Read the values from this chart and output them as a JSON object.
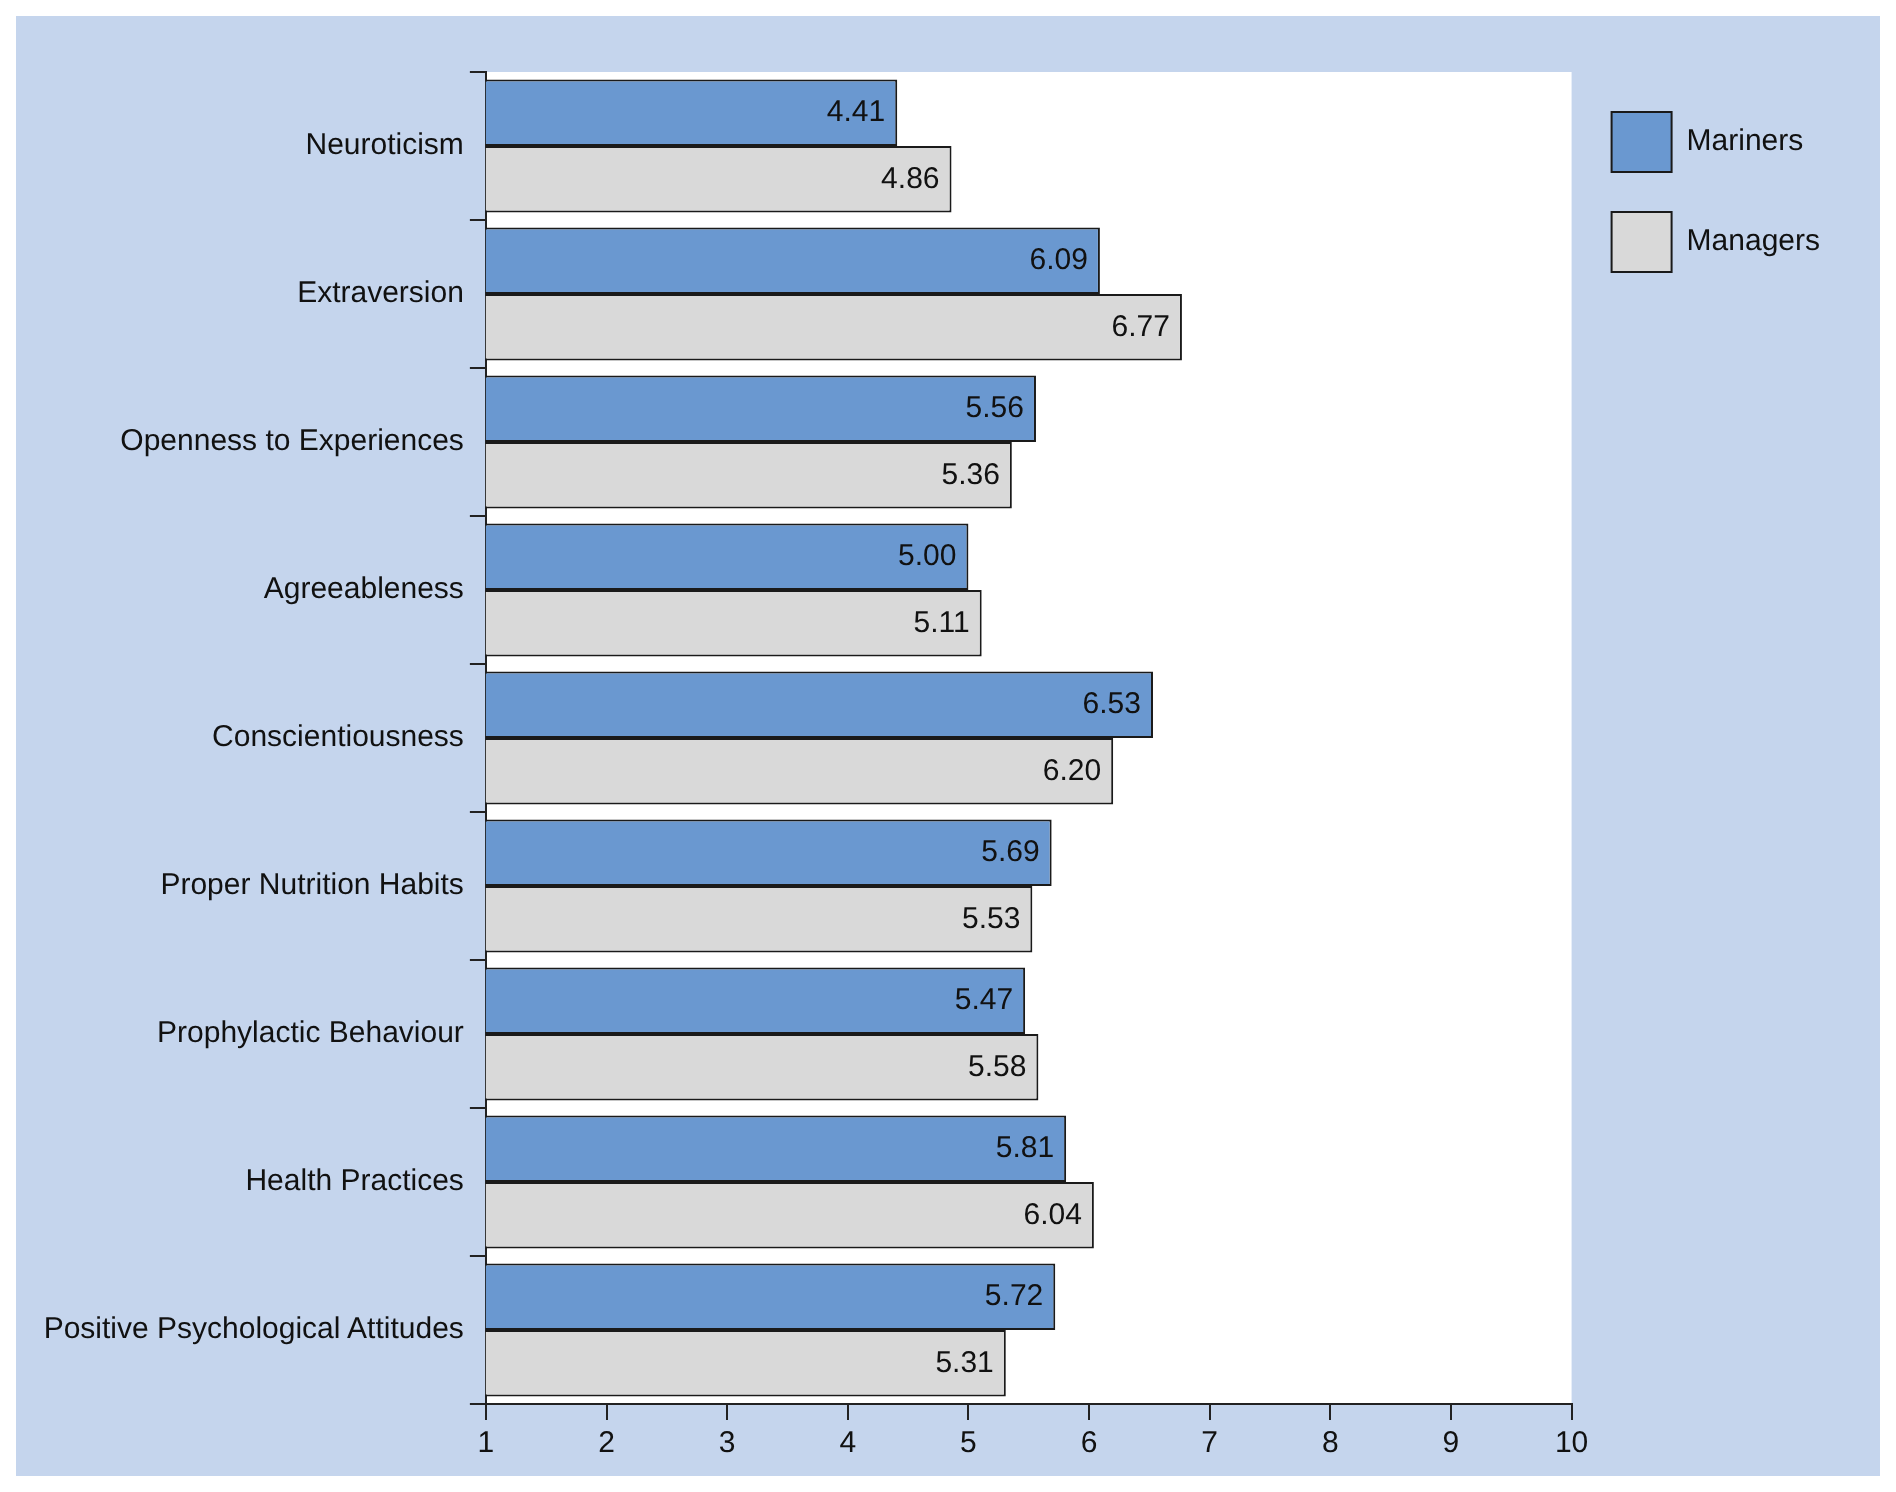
{
  "chart_data": {
    "type": "bar",
    "orientation": "horizontal",
    "categories": [
      "Neuroticism",
      "Extraversion",
      "Openness to Experiences",
      "Agreeableness",
      "Conscientiousness",
      "Proper Nutrition Habits",
      "Prophylactic Behaviour",
      "Health Practices",
      "Positive Psychological Attitudes"
    ],
    "series": [
      {
        "name": "Mariners",
        "color": "#6a98d0",
        "values": [
          4.41,
          6.09,
          5.56,
          5.0,
          6.53,
          5.69,
          5.47,
          5.81,
          5.72
        ],
        "value_labels": [
          "4.41",
          "6.09",
          "5.56",
          "5.00",
          "6.53",
          "5.69",
          "5.47",
          "5.81",
          "5.72"
        ]
      },
      {
        "name": "Managers",
        "color": "#d9d9d9",
        "values": [
          4.86,
          6.77,
          5.36,
          5.11,
          6.2,
          5.53,
          5.58,
          6.04,
          5.31
        ],
        "value_labels": [
          "4.86",
          "6.77",
          "5.36",
          "5.11",
          "6.20",
          "5.53",
          "5.58",
          "6.04",
          "5.31"
        ]
      }
    ],
    "xlim": [
      1,
      10
    ],
    "xticks": [
      1,
      2,
      3,
      4,
      5,
      6,
      7,
      8,
      9,
      10
    ],
    "grid": false,
    "legend": "top right"
  }
}
